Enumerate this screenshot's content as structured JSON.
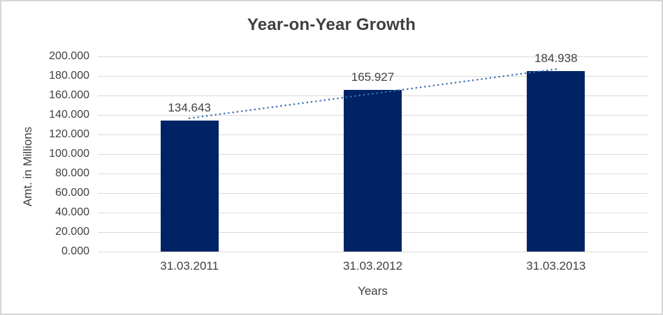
{
  "chart_data": {
    "type": "bar",
    "title": "Year-on-Year Growth",
    "xlabel": "Years",
    "ylabel": "Amt. in Millions",
    "categories": [
      "31.03.2011",
      "31.03.2012",
      "31.03.2013"
    ],
    "values": [
      134.643,
      165.927,
      184.938
    ],
    "value_labels": [
      "134.643",
      "165.927",
      "184.938"
    ],
    "ylim": [
      0,
      200
    ],
    "ytick_step": 20,
    "ytick_labels": [
      "0.000",
      "20.000",
      "40.000",
      "60.000",
      "80.000",
      "100.000",
      "120.000",
      "140.000",
      "160.000",
      "180.000",
      "200.000"
    ],
    "grid": true,
    "legend": false,
    "trendline": {
      "type": "linear",
      "style": "dotted",
      "color": "#3b6fb5"
    },
    "colors": {
      "bar": "#002366",
      "gridline": "#d9d9d9",
      "text": "#404040",
      "title": "#3f3f3f",
      "border": "#d6d6d6",
      "background": "#ffffff"
    }
  }
}
